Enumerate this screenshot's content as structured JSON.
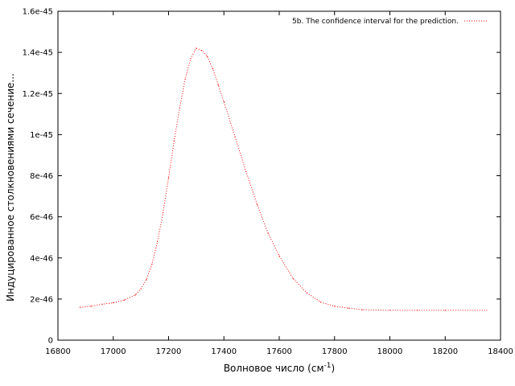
{
  "chart_data": {
    "type": "line",
    "title": "",
    "xlabel": "Волновое число (см",
    "xlabel_sup": "-1",
    "xlabel_close": ")",
    "ylabel": "Индуцированное столкновениями сечение...",
    "xlim": [
      16800,
      18400
    ],
    "ylim": [
      0,
      1.6e-45
    ],
    "x_ticks": [
      16800,
      17000,
      17200,
      17400,
      17600,
      17800,
      18000,
      18200,
      18400
    ],
    "x_tick_labels": [
      "16800",
      "17000",
      "17200",
      "17400",
      "17600",
      "17800",
      "18000",
      "18200",
      "18400"
    ],
    "y_ticks": [
      0,
      2e-46,
      4e-46,
      6e-46,
      8e-46,
      1e-45,
      1.2e-45,
      1.4e-45,
      1.6e-45
    ],
    "y_tick_labels": [
      "0",
      "2e-46",
      "4e-46",
      "6e-46",
      "8e-46",
      "1e-45",
      "1.2e-45",
      "1.4e-45",
      "1.6e-45"
    ],
    "grid": false,
    "legend_position": "top-right",
    "series": [
      {
        "name": "5b. The confidence interval for the prediction.",
        "color": "#ff0000",
        "style": "dotted",
        "x": [
          16880,
          16920,
          16960,
          17000,
          17040,
          17080,
          17100,
          17120,
          17140,
          17160,
          17180,
          17200,
          17220,
          17240,
          17260,
          17280,
          17300,
          17320,
          17340,
          17360,
          17380,
          17400,
          17440,
          17480,
          17520,
          17560,
          17600,
          17650,
          17700,
          17750,
          17800,
          17850,
          17900,
          18000,
          18100,
          18200,
          18350
        ],
        "y": [
          1.6e-46,
          1.65e-46,
          1.75e-46,
          1.82e-46,
          1.95e-46,
          2.2e-46,
          2.5e-46,
          2.95e-46,
          3.7e-46,
          4.8e-46,
          6.2e-46,
          7.9e-46,
          9.7e-46,
          1.13e-45,
          1.27e-45,
          1.37e-45,
          1.42e-45,
          1.41e-45,
          1.38e-45,
          1.32e-45,
          1.24e-45,
          1.16e-45,
          9.9e-46,
          8.2e-46,
          6.6e-46,
          5.2e-46,
          4.1e-46,
          3e-46,
          2.3e-46,
          1.85e-46,
          1.65e-46,
          1.56e-46,
          1.48e-46,
          1.45e-46,
          1.45e-46,
          1.45e-46,
          1.45e-46
        ]
      }
    ]
  }
}
